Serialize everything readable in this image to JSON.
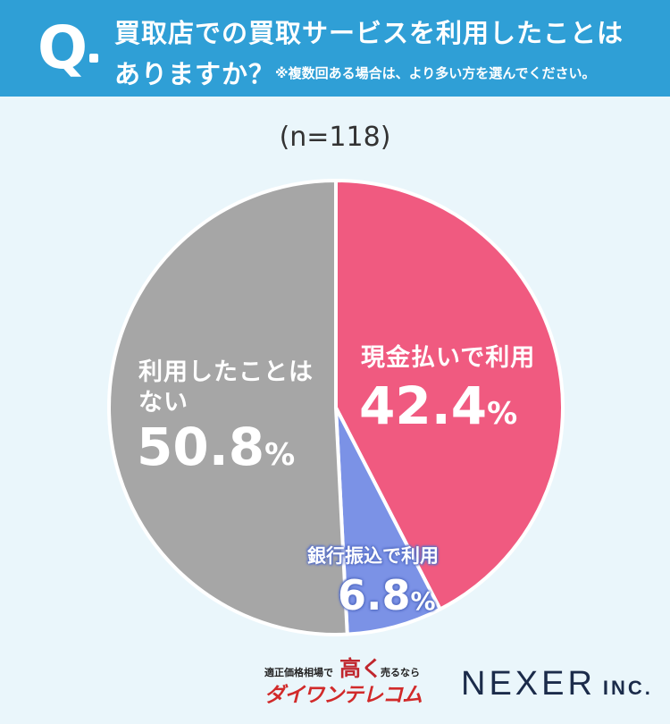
{
  "header": {
    "q_mark": "Q",
    "question_line1": "買取店での買取サービスを利用したことは",
    "question_line2": "ありますか？",
    "note": "※複数回ある場合は、より多い方を選んでください。"
  },
  "colors": {
    "header_bg": "#2f9fd6",
    "background": "#eaf6fb",
    "cash": "#f05a80",
    "transfer": "#7b92e6",
    "never": "#a6a6a6"
  },
  "chart_data": {
    "type": "pie",
    "sample_label": "(n=118)",
    "slices": [
      {
        "label": "現金払いで利用",
        "value": 42.4,
        "display": "42.4",
        "unit": "%",
        "color": "#f05a80"
      },
      {
        "label": "銀行振込で利用",
        "value": 6.8,
        "display": "6.8",
        "unit": "%",
        "color": "#7b92e6"
      },
      {
        "label_line1": "利用したことは",
        "label_line2": "ない",
        "label": "利用したことはない",
        "value": 50.8,
        "display": "50.8",
        "unit": "%",
        "color": "#a6a6a6"
      }
    ],
    "start": "12 o'clock",
    "direction": "clockwise"
  },
  "footer": {
    "left_top": "適正価格相場で",
    "left_highlight": "高く",
    "left_sell": "売るなら",
    "left_brand": "ダイワンテレコム",
    "right_brand": "NEXER",
    "right_suffix": "INC."
  }
}
